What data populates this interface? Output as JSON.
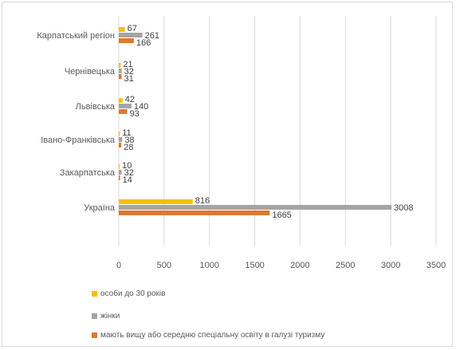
{
  "chart_data": {
    "type": "bar",
    "orientation": "horizontal",
    "categories": [
      "Карпатський регіон",
      "Чернівецька",
      "Львівська",
      "Івано-Франківська",
      "Закарпатська",
      "Україна"
    ],
    "series": [
      {
        "name": "особи до 30 років",
        "color": "#f5c000",
        "values": [
          67,
          21,
          42,
          11,
          10,
          816
        ]
      },
      {
        "name": "жінки",
        "color": "#a5a5a5",
        "values": [
          261,
          32,
          140,
          38,
          32,
          3008
        ]
      },
      {
        "name": "мають вищу або середню спеціальну освіту в галузі туризму",
        "color": "#e0772e",
        "values": [
          166,
          31,
          93,
          28,
          14,
          1665
        ]
      }
    ],
    "xlim": [
      0,
      3500
    ],
    "xticks": [
      "0",
      "500",
      "1000",
      "1500",
      "2000",
      "2500",
      "3000",
      "3500"
    ],
    "grid": true,
    "legend_position": "bottom"
  }
}
